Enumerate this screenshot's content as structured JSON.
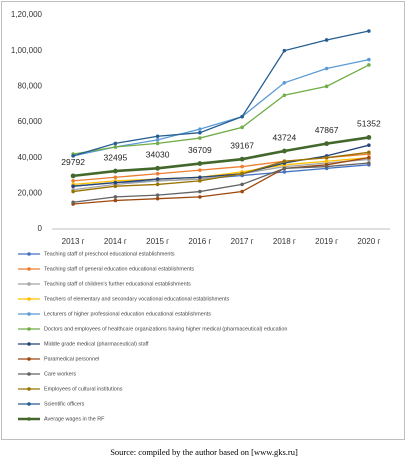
{
  "chart_data": {
    "type": "line",
    "source": "Source: compiled by the author based on [www.gks.ru]",
    "categories": [
      "2013 г",
      "2014 г",
      "2015 г",
      "2016 г",
      "2017 г",
      "2018 г",
      "2019 г",
      "2020 г"
    ],
    "ylim": [
      0,
      120000
    ],
    "yticks": [
      0,
      {
        "value": 20000,
        "label": "20,000"
      },
      {
        "value": 40000,
        "label": "40,000"
      },
      {
        "value": 60000,
        "label": "60,000"
      },
      {
        "value": 80000,
        "label": "80,000"
      },
      {
        "value": 100000,
        "label": "1,00,000"
      },
      {
        "value": 120000,
        "label": "1,20,000"
      }
    ],
    "grid": false,
    "series": [
      {
        "name": "Teaching staff of preschool educational establishments",
        "color": "#4472c4",
        "values": [
          24000,
          26000,
          27000,
          28000,
          30000,
          32000,
          34000,
          36000
        ]
      },
      {
        "name": "Teaching staff of general education educational establishments",
        "color": "#ed7d31",
        "values": [
          27000,
          29000,
          31000,
          33000,
          35000,
          38000,
          40000,
          42000
        ]
      },
      {
        "name": "Teaching staff of children's further educational establishments",
        "color": "#a5a5a5",
        "values": [
          22000,
          25000,
          27000,
          28000,
          31000,
          35000,
          37000,
          39000
        ]
      },
      {
        "name": "Teachers of elementary and secondary vocational educational establishments",
        "color": "#ffc000",
        "values": [
          25000,
          27000,
          28000,
          29000,
          32000,
          36000,
          38000,
          40000
        ]
      },
      {
        "name": "Lecturers of higher professional education educational establishments",
        "color": "#5b9bd5",
        "values": [
          41000,
          46000,
          50000,
          56000,
          63000,
          82000,
          90000,
          95000
        ]
      },
      {
        "name": "Doctors and employees of healthcare organizations having higher medical (pharmaceutical) education",
        "color": "#70ad47",
        "values": [
          42000,
          46000,
          48000,
          51000,
          57000,
          75000,
          80000,
          92000
        ]
      },
      {
        "name": "Middle grade medical (pharmaceutical) staff",
        "color": "#264478",
        "values": [
          24000,
          26000,
          28000,
          29000,
          31000,
          37000,
          41000,
          47000
        ]
      },
      {
        "name": "Paramedical personnel",
        "color": "#9e480e",
        "values": [
          14000,
          16000,
          17000,
          18000,
          21000,
          34000,
          36000,
          40000
        ]
      },
      {
        "name": "Care workers",
        "color": "#636363",
        "values": [
          15000,
          18000,
          19000,
          21000,
          25000,
          34000,
          35000,
          37000
        ]
      },
      {
        "name": "Employees of cultural institutions",
        "color": "#997300",
        "values": [
          21000,
          24000,
          25000,
          27000,
          31000,
          38000,
          40000,
          43000
        ]
      },
      {
        "name": "Scientific officers",
        "color": "#255e91",
        "values": [
          41000,
          48000,
          52000,
          54000,
          63000,
          100000,
          106000,
          111000
        ]
      },
      {
        "name": "Average wages in the RF",
        "color": "#43682b",
        "values": [
          29792,
          32495,
          34030,
          36709,
          39167,
          43724,
          47867,
          51352
        ],
        "show_labels": true,
        "bold": true
      }
    ]
  }
}
